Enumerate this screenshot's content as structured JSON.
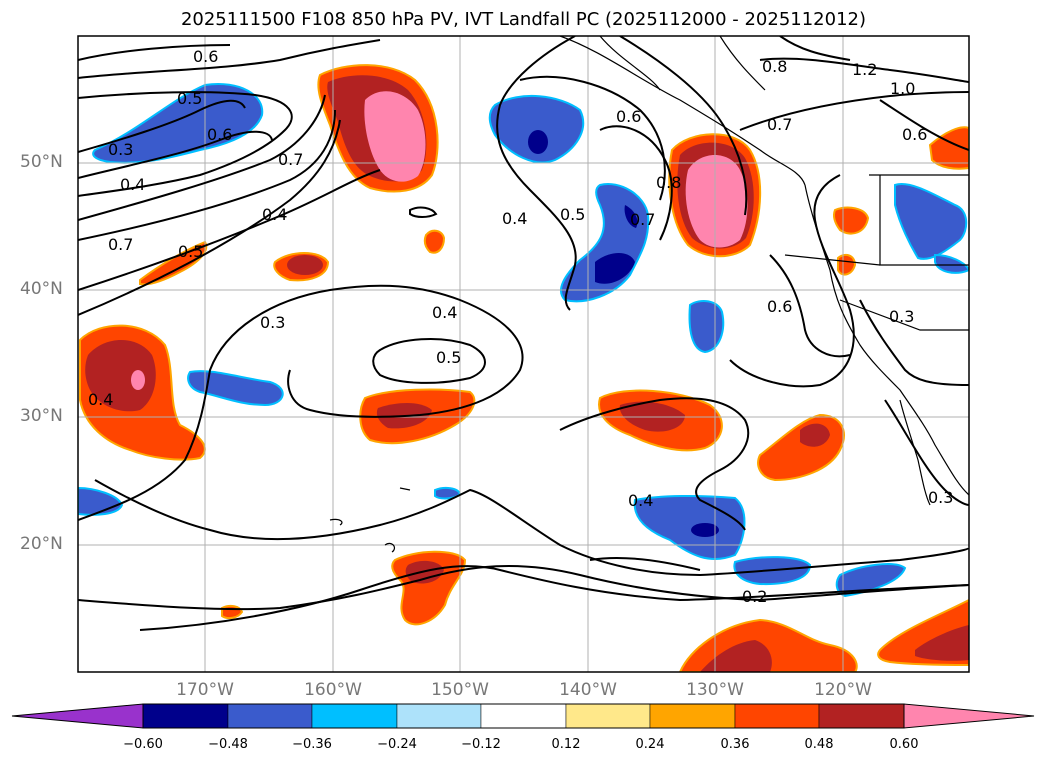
{
  "title": "2025111500 F108 850 hPa PV, IVT Landfall PC (2025112000 - 2025112012)",
  "axes": {
    "lat_labels": [
      "50°N",
      "40°N",
      "30°N",
      "20°N"
    ],
    "lon_labels": [
      "170°W",
      "160°W",
      "150°W",
      "140°W",
      "130°W",
      "120°W"
    ]
  },
  "contour_labels": [
    "0.6",
    "0.5",
    "0.6",
    "0.3",
    "0.4",
    "0.7",
    "0.7",
    "0.4",
    "0.5",
    "0.3",
    "0.4",
    "0.4",
    "0.5",
    "0.6",
    "0.4",
    "0.5",
    "0.7",
    "0.8",
    "0.8",
    "0.7",
    "1.2",
    "1.0",
    "0.6",
    "0.6",
    "0.3",
    "0.4",
    "0.2",
    "0.3"
  ],
  "colorbar": {
    "ticks": [
      "−0.60",
      "−0.48",
      "−0.36",
      "−0.24",
      "−0.12",
      "0.12",
      "0.24",
      "0.36",
      "0.48",
      "0.60"
    ],
    "colors": [
      "#9932CC",
      "#00008B",
      "#3A5BCC",
      "#00BFFF",
      "#ADE2FA",
      "#FFFFFF",
      "#FFE88A",
      "#FFA500",
      "#FF4500",
      "#B22222",
      "#FF85AE"
    ]
  }
}
